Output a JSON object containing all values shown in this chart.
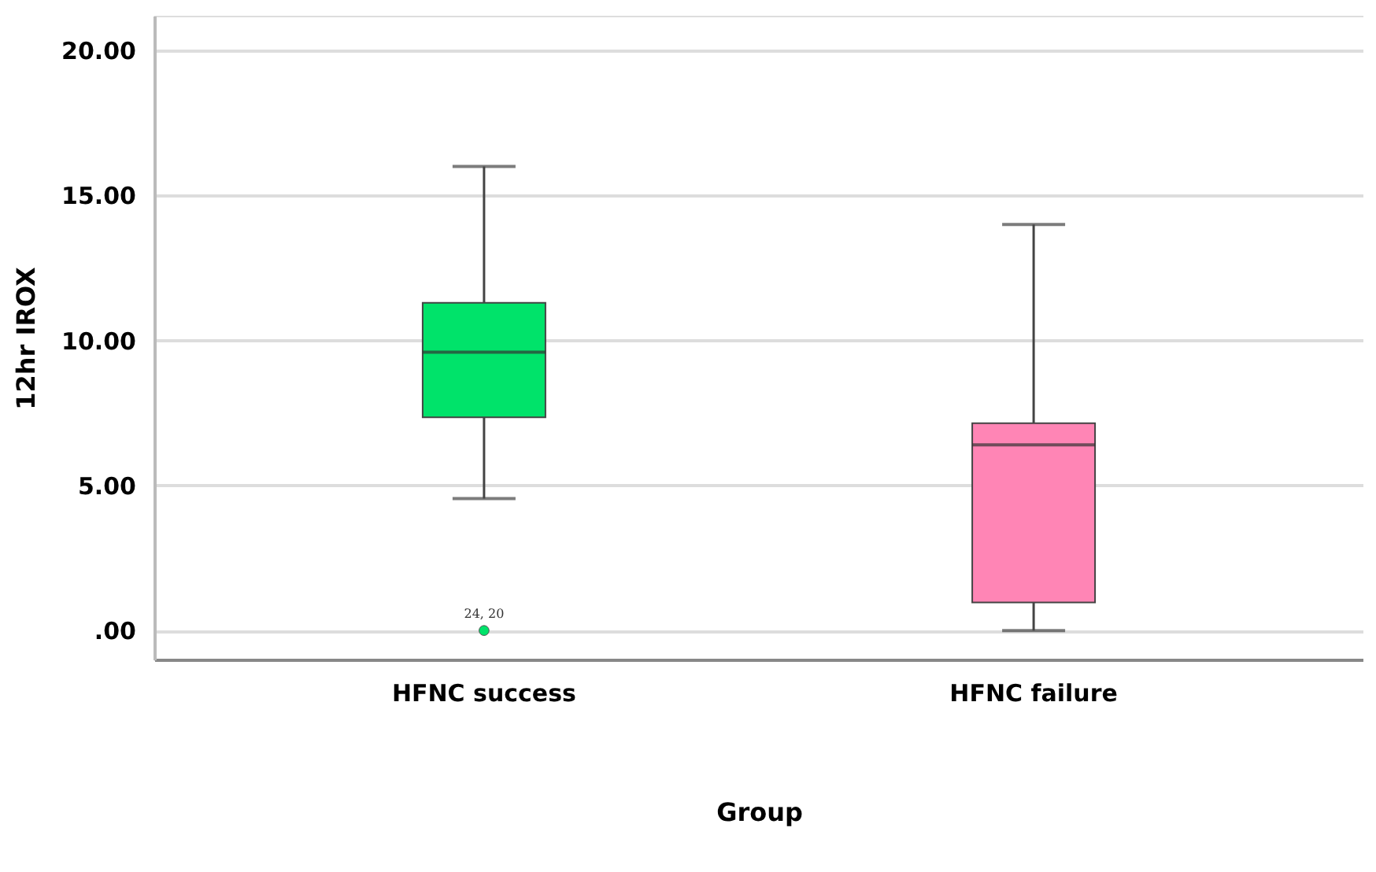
{
  "chart_data": {
    "type": "box",
    "xlabel": "Group",
    "ylabel": "12hr IROX",
    "categories": [
      "HFNC success",
      "HFNC failure"
    ],
    "colors": [
      "#00e36a",
      "#ff85b5"
    ],
    "boxes": [
      {
        "low": 4.55,
        "q1": 7.35,
        "median": 9.6,
        "q3": 11.3,
        "high": 16.0,
        "outliers": [
          0.0
        ]
      },
      {
        "low": 0.0,
        "q1": 0.97,
        "median": 6.4,
        "q3": 7.15,
        "high": 14.0
      }
    ],
    "ylim": [
      -1,
      21.2
    ],
    "yticks": [
      {
        "value": 0,
        "label": ".00"
      },
      {
        "value": 5,
        "label": "5.00"
      },
      {
        "value": 10,
        "label": "10.00"
      },
      {
        "value": 15,
        "label": "15.00"
      },
      {
        "value": 20,
        "label": "20.00"
      }
    ],
    "grid": "y",
    "annotations": [
      "24, 20"
    ]
  }
}
